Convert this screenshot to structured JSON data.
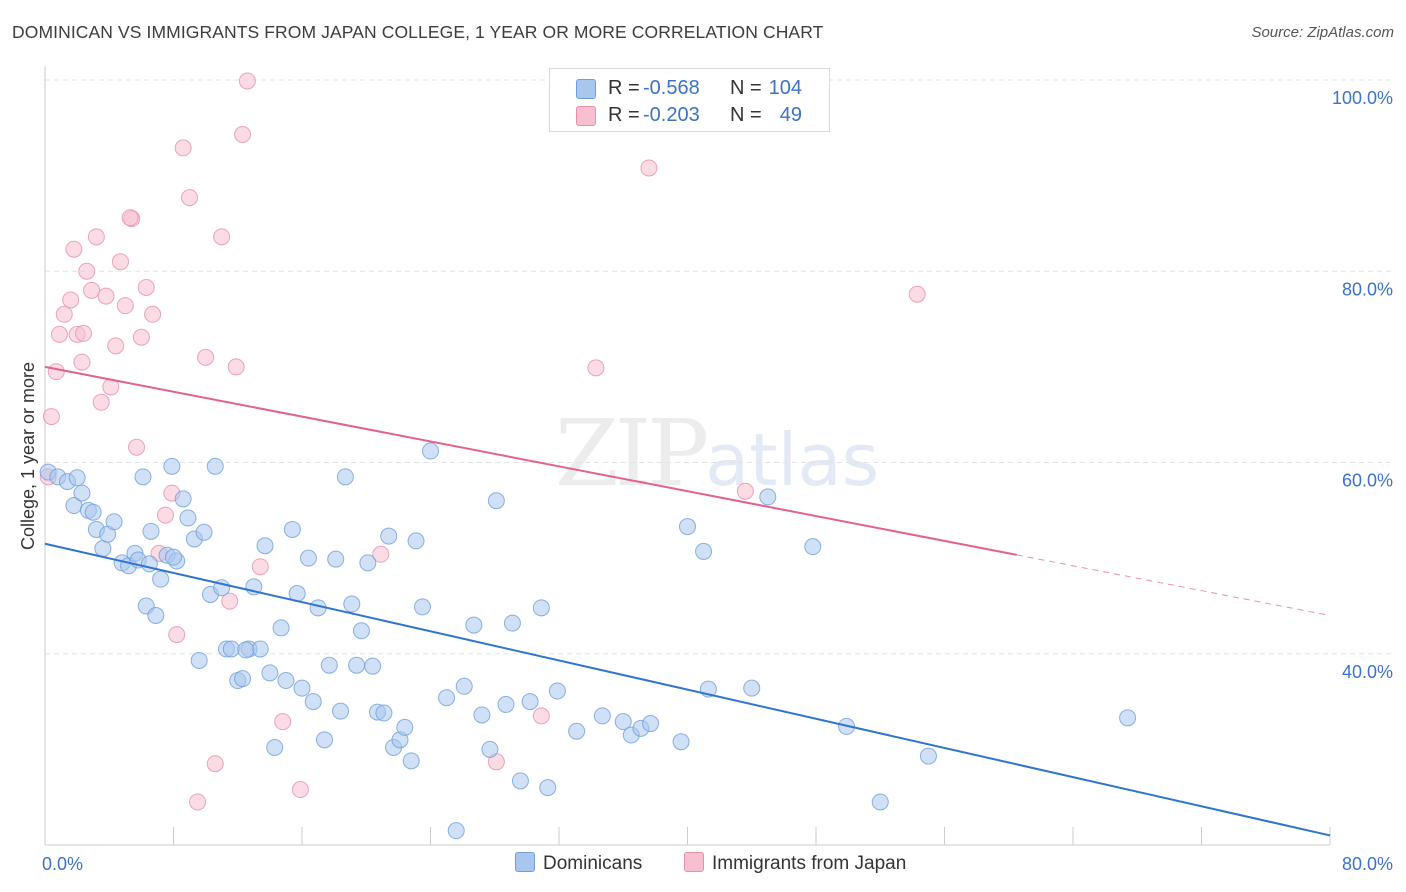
{
  "title": "DOMINICAN VS IMMIGRANTS FROM JAPAN COLLEGE, 1 YEAR OR MORE CORRELATION CHART",
  "source": "Source: ZipAtlas.com",
  "watermark": {
    "zip": "ZIP",
    "atlas": "atlas"
  },
  "legend": {
    "rows": [
      {
        "r_label": "R =",
        "r_value": "-0.568",
        "n_label": "N =",
        "n_value": "104",
        "color": "#a9c6ee",
        "border": "#6f9fd8"
      },
      {
        "r_label": "R =",
        "r_value": "-0.203",
        "n_label": "N =",
        "n_value": "49",
        "color": "#f7bfd0",
        "border": "#e88fab"
      }
    ]
  },
  "bottom_legend": [
    {
      "label": "Dominicans",
      "color": "#a9c6ee",
      "border": "#6f9fd8"
    },
    {
      "label": "Immigrants from Japan",
      "color": "#f7bfd0",
      "border": "#e88fab"
    }
  ],
  "chart_data": {
    "type": "scatter",
    "ylabel": "College, 1 year or more",
    "xlim": [
      0,
      80
    ],
    "ylim": [
      20,
      100
    ],
    "x_tick_labels": [
      "0.0%",
      "80.0%"
    ],
    "y_ticks": [
      40,
      60,
      80,
      100
    ],
    "y_tick_labels": [
      "40.0%",
      "60.0%",
      "80.0%",
      "100.0%"
    ],
    "grid": true,
    "colors": {
      "blue_fill": "#a9c6ee",
      "blue_edge": "#6f9fd8",
      "blue_line": "#2f74d0",
      "pink_fill": "#f7bfd0",
      "pink_edge": "#e88fab",
      "pink_line": "#e2628d",
      "tick_text": "#3a73c8"
    },
    "series": [
      {
        "name": "Dominicans",
        "trend": {
          "x0": 0,
          "y0": 51.5,
          "x1": 80,
          "y1": 21.0,
          "dashed_from": null
        },
        "points": [
          [
            0.2,
            59.0
          ],
          [
            0.8,
            58.5
          ],
          [
            1.4,
            58.0
          ],
          [
            1.8,
            55.5
          ],
          [
            2.3,
            56.8
          ],
          [
            2.7,
            55.0
          ],
          [
            3.0,
            54.8
          ],
          [
            3.2,
            53.0
          ],
          [
            3.6,
            51.0
          ],
          [
            3.9,
            52.5
          ],
          [
            4.3,
            53.8
          ],
          [
            4.8,
            49.5
          ],
          [
            5.2,
            49.2
          ],
          [
            5.6,
            50.5
          ],
          [
            5.8,
            49.8
          ],
          [
            6.1,
            58.5
          ],
          [
            6.3,
            45.0
          ],
          [
            6.6,
            52.8
          ],
          [
            6.9,
            44.0
          ],
          [
            7.2,
            47.8
          ],
          [
            7.6,
            50.3
          ],
          [
            7.9,
            59.6
          ],
          [
            8.2,
            49.7
          ],
          [
            8.6,
            56.2
          ],
          [
            8.9,
            54.2
          ],
          [
            9.3,
            52.0
          ],
          [
            9.6,
            39.3
          ],
          [
            9.9,
            52.7
          ],
          [
            10.3,
            46.2
          ],
          [
            10.6,
            59.6
          ],
          [
            11.0,
            46.9
          ],
          [
            11.3,
            40.5
          ],
          [
            11.6,
            40.5
          ],
          [
            12.0,
            37.2
          ],
          [
            12.3,
            37.4
          ],
          [
            12.7,
            40.5
          ],
          [
            13.0,
            47.0
          ],
          [
            13.4,
            40.5
          ],
          [
            13.7,
            51.3
          ],
          [
            14.0,
            38.0
          ],
          [
            14.3,
            30.2
          ],
          [
            14.7,
            42.7
          ],
          [
            15.0,
            37.2
          ],
          [
            15.4,
            53.0
          ],
          [
            15.7,
            46.3
          ],
          [
            16.0,
            36.4
          ],
          [
            16.4,
            50.0
          ],
          [
            16.7,
            35.0
          ],
          [
            17.0,
            44.8
          ],
          [
            17.4,
            31.0
          ],
          [
            17.7,
            38.8
          ],
          [
            18.1,
            49.9
          ],
          [
            18.4,
            34.0
          ],
          [
            18.7,
            58.5
          ],
          [
            19.1,
            45.2
          ],
          [
            19.4,
            38.8
          ],
          [
            19.7,
            42.4
          ],
          [
            20.1,
            49.5
          ],
          [
            20.4,
            38.7
          ],
          [
            20.7,
            33.9
          ],
          [
            21.1,
            33.8
          ],
          [
            21.4,
            52.3
          ],
          [
            21.7,
            30.2
          ],
          [
            22.1,
            31.0
          ],
          [
            22.4,
            32.3
          ],
          [
            22.8,
            28.8
          ],
          [
            23.1,
            51.8
          ],
          [
            23.5,
            44.9
          ],
          [
            24.0,
            61.2
          ],
          [
            25.0,
            35.4
          ],
          [
            25.6,
            21.5
          ],
          [
            26.1,
            36.6
          ],
          [
            26.7,
            43.0
          ],
          [
            27.2,
            33.6
          ],
          [
            27.7,
            30.0
          ],
          [
            28.1,
            56.0
          ],
          [
            28.7,
            34.7
          ],
          [
            29.1,
            43.2
          ],
          [
            29.6,
            26.7
          ],
          [
            30.2,
            35.0
          ],
          [
            30.9,
            44.8
          ],
          [
            31.3,
            26.0
          ],
          [
            31.9,
            36.1
          ],
          [
            33.1,
            31.9
          ],
          [
            34.7,
            33.5
          ],
          [
            36.0,
            32.9
          ],
          [
            36.5,
            31.5
          ],
          [
            37.1,
            32.2
          ],
          [
            37.7,
            32.7
          ],
          [
            39.6,
            30.8
          ],
          [
            40.0,
            53.3
          ],
          [
            41.0,
            50.7
          ],
          [
            41.3,
            36.3
          ],
          [
            44.0,
            36.4
          ],
          [
            45.0,
            56.4
          ],
          [
            47.8,
            51.2
          ],
          [
            49.9,
            32.4
          ],
          [
            52.0,
            24.5
          ],
          [
            55.0,
            29.3
          ],
          [
            67.4,
            33.3
          ],
          [
            2.0,
            58.4
          ],
          [
            6.5,
            49.4
          ],
          [
            8.0,
            50.1
          ],
          [
            12.5,
            40.4
          ]
        ]
      },
      {
        "name": "Immigrants from Japan",
        "trend": {
          "x0": 0,
          "y0": 70.0,
          "x1": 80,
          "y1": 44.0,
          "dashed_from": 60.5
        },
        "points": [
          [
            0.2,
            58.5
          ],
          [
            0.4,
            64.8
          ],
          [
            0.7,
            69.5
          ],
          [
            0.9,
            73.4
          ],
          [
            1.2,
            75.5
          ],
          [
            1.6,
            77.0
          ],
          [
            1.8,
            82.3
          ],
          [
            2.0,
            73.4
          ],
          [
            2.3,
            70.5
          ],
          [
            2.6,
            80.0
          ],
          [
            2.9,
            78.0
          ],
          [
            3.2,
            83.6
          ],
          [
            3.5,
            66.3
          ],
          [
            3.8,
            77.4
          ],
          [
            4.1,
            67.9
          ],
          [
            4.4,
            72.2
          ],
          [
            4.7,
            81.0
          ],
          [
            5.0,
            76.4
          ],
          [
            5.4,
            85.5
          ],
          [
            5.7,
            61.6
          ],
          [
            6.0,
            73.1
          ],
          [
            6.3,
            78.3
          ],
          [
            6.7,
            75.5
          ],
          [
            7.1,
            50.5
          ],
          [
            7.5,
            54.5
          ],
          [
            7.9,
            56.8
          ],
          [
            8.2,
            42.0
          ],
          [
            8.6,
            92.9
          ],
          [
            9.0,
            87.7
          ],
          [
            9.5,
            24.5
          ],
          [
            10.0,
            71.0
          ],
          [
            10.6,
            28.5
          ],
          [
            11.0,
            83.6
          ],
          [
            11.5,
            45.5
          ],
          [
            11.9,
            70.0
          ],
          [
            12.3,
            94.3
          ],
          [
            12.6,
            99.9
          ],
          [
            13.4,
            49.1
          ],
          [
            14.8,
            32.9
          ],
          [
            15.9,
            25.8
          ],
          [
            20.9,
            50.4
          ],
          [
            28.1,
            28.7
          ],
          [
            30.9,
            33.5
          ],
          [
            34.3,
            69.9
          ],
          [
            37.6,
            90.8
          ],
          [
            43.6,
            57.0
          ],
          [
            54.3,
            77.6
          ],
          [
            2.4,
            73.5
          ],
          [
            5.3,
            85.6
          ]
        ]
      }
    ]
  }
}
